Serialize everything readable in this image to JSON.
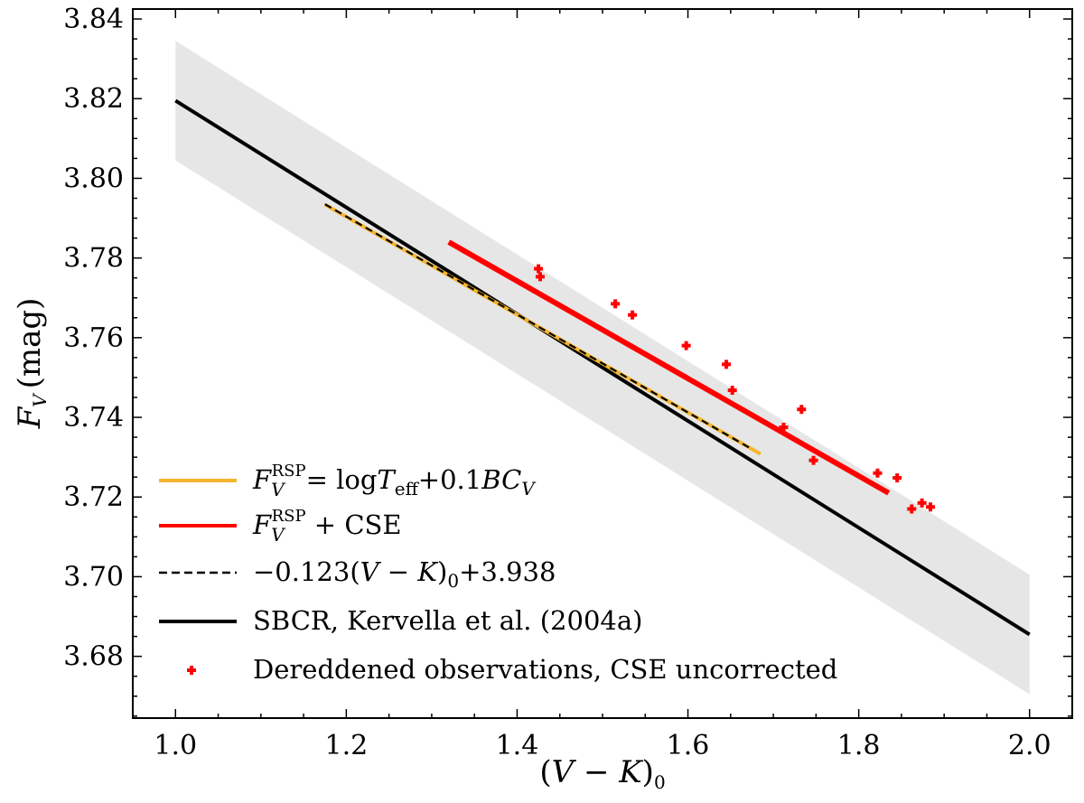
{
  "chart_data": {
    "type": "line",
    "xlabel": "(V − K)₀",
    "ylabel": "F_V (mag)",
    "xlim": [
      0.95,
      2.05
    ],
    "ylim": [
      3.6645,
      3.8425
    ],
    "xticks": [
      1.0,
      1.2,
      1.4,
      1.6,
      1.8,
      2.0
    ],
    "xtick_labels": [
      "1.0",
      "1.2",
      "1.4",
      "1.6",
      "1.8",
      "2.0"
    ],
    "yticks": [
      3.68,
      3.7,
      3.72,
      3.74,
      3.76,
      3.78,
      3.8,
      3.82,
      3.84
    ],
    "ytick_labels": [
      "3.68",
      "3.70",
      "3.72",
      "3.74",
      "3.76",
      "3.78",
      "3.80",
      "3.82",
      "3.84"
    ],
    "grid": false,
    "legend_position": "bottom-left",
    "band": {
      "name": "SBCR uncertainty",
      "color": "#e6e6e6",
      "x": [
        1.0,
        2.0
      ],
      "lower": [
        3.8045,
        3.6705
      ],
      "upper": [
        3.8345,
        3.7005
      ]
    },
    "series": [
      {
        "name": "SBCR, Kervella et al. (2004a)",
        "kind": "line",
        "color": "#000000",
        "dash": "solid",
        "x": [
          1.0,
          2.0
        ],
        "y": [
          3.8195,
          3.6855
        ]
      },
      {
        "name": "F_V^RSP = logT_eff + 0.1BC_V",
        "kind": "line",
        "color": "#f5b52e",
        "dash": "solid",
        "x": [
          1.175,
          1.685
        ],
        "y": [
          3.7934,
          3.7308
        ]
      },
      {
        "name": "−0.123(V − K)₀ + 3.938",
        "kind": "line",
        "color": "#000000",
        "dash": "dashed",
        "x": [
          1.175,
          1.675
        ],
        "y": [
          3.7935,
          3.732
        ]
      },
      {
        "name": "F_V^RSP + CSE",
        "kind": "line",
        "color": "#ff0000",
        "dash": "solid",
        "x": [
          1.32,
          1.835
        ],
        "y": [
          3.784,
          3.721
        ]
      },
      {
        "name": "Dereddened observations, CSE uncorrected",
        "kind": "scatter",
        "color": "#ff0000",
        "x": [
          1.425,
          1.427,
          1.515,
          1.535,
          1.598,
          1.645,
          1.652,
          1.712,
          1.733,
          1.747,
          1.822,
          1.845,
          1.862,
          1.874,
          1.884
        ],
        "y": [
          3.7773,
          3.7753,
          3.7685,
          3.7657,
          3.758,
          3.7533,
          3.7468,
          3.7375,
          3.742,
          3.7292,
          3.726,
          3.7248,
          3.717,
          3.7185,
          3.7175
        ]
      }
    ],
    "legend": {
      "entries": [
        {
          "series": "rsp",
          "symbol": "line",
          "color": "#f5b52e",
          "main": "F",
          "sub": "V",
          "sup": "RSP",
          "rest_a": "= log",
          "main2": "T",
          "sub2": "eff",
          "rest_b": "+0.1",
          "main3": "BC",
          "sub3": "V"
        },
        {
          "series": "cse",
          "symbol": "line",
          "color": "#ff0000",
          "main": "F",
          "sub": "V",
          "sup": "RSP",
          "rest_a": " + CSE"
        },
        {
          "series": "fit",
          "symbol": "dashed",
          "color": "#000000",
          "text_a": "−0.123(",
          "main": "V",
          "text_b": " − ",
          "main2": "K",
          "text_c": ")",
          "sub": "0",
          "text_d": "+3.938"
        },
        {
          "series": "sbcr",
          "symbol": "line",
          "color": "#000000",
          "text": "SBCR, Kervella et al. (2004a)"
        },
        {
          "series": "obs",
          "symbol": "plus",
          "color": "#ff0000",
          "text": "Dereddened observations, CSE uncorrected"
        }
      ]
    },
    "axis_text": {
      "x_open": "(",
      "x_V": "V",
      "x_minus": " − ",
      "x_K": "K",
      "x_close": ")",
      "x_sub": "0",
      "y_F": "F",
      "y_sub": "V",
      "y_unit": "(mag)"
    }
  }
}
